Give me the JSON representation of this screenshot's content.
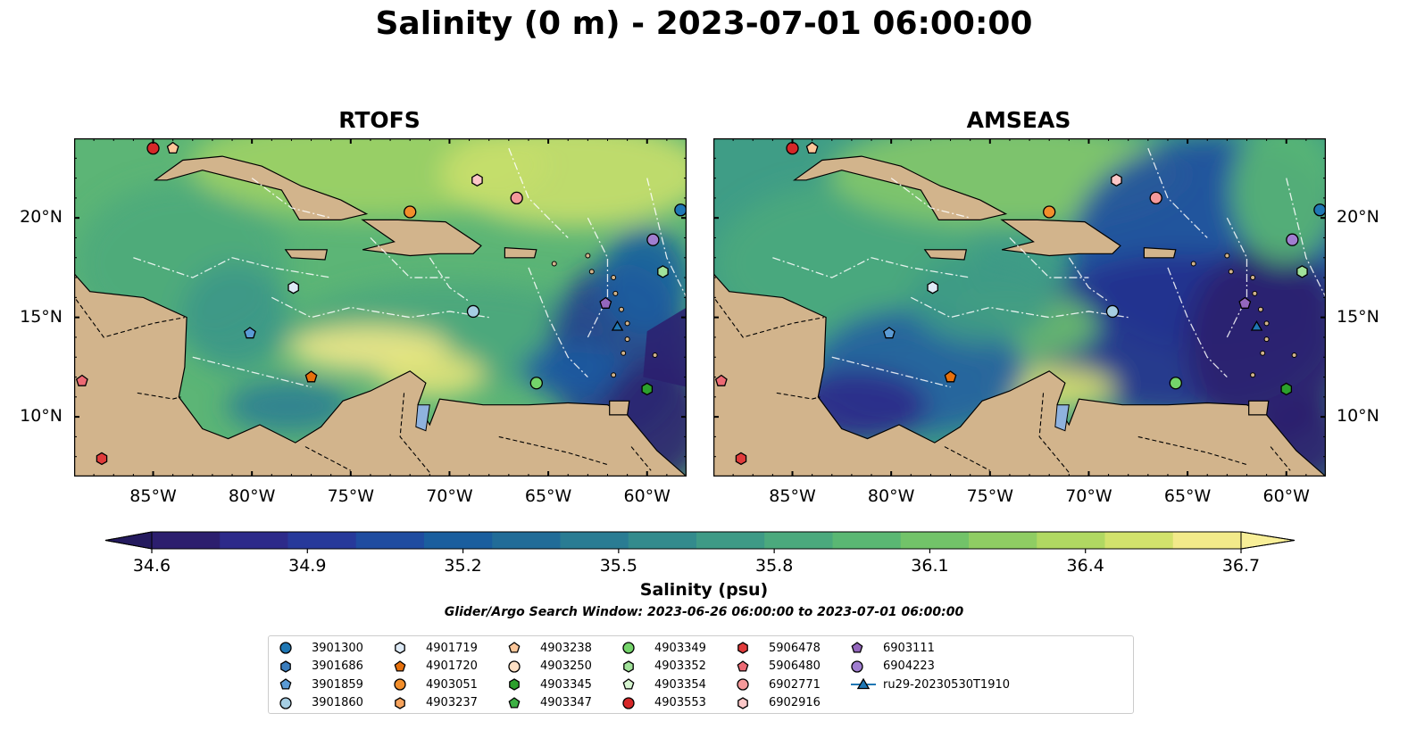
{
  "title": "Salinity (0 m) - 2023-07-01 06:00:00",
  "panels": [
    {
      "title": "RTOFS"
    },
    {
      "title": "AMSEAS"
    }
  ],
  "axes": {
    "lon_ticks": [
      "85°W",
      "80°W",
      "75°W",
      "70°W",
      "65°W",
      "60°W"
    ],
    "lat_ticks": [
      "20°N",
      "15°N",
      "10°N"
    ]
  },
  "colorbar": {
    "label": "Salinity (psu)",
    "min": 34.6,
    "max": 36.7,
    "ticks": [
      "34.6",
      "34.9",
      "35.2",
      "35.5",
      "35.8",
      "36.1",
      "36.4",
      "36.7"
    ],
    "colors": [
      "#2c1e6e",
      "#2d2a8a",
      "#27399a",
      "#1f4ca0",
      "#1a5e9e",
      "#216c98",
      "#2a7c93",
      "#338b8d",
      "#3e9a86",
      "#4ba97d",
      "#5ab773",
      "#72c369",
      "#8fcd63",
      "#b0d862",
      "#d2e26c",
      "#f2ea8a"
    ]
  },
  "search_window": "Glider/Argo Search Window: 2023-06-26 06:00:00 to 2023-07-01 06:00:00",
  "legend": [
    {
      "id": "3901300",
      "marker": "circle",
      "color": "#1f77b4"
    },
    {
      "id": "3901686",
      "marker": "hexagon",
      "color": "#3a7dbd"
    },
    {
      "id": "3901859",
      "marker": "pentagon",
      "color": "#5b9bd5"
    },
    {
      "id": "3901860",
      "marker": "circle",
      "color": "#a6cee3"
    },
    {
      "id": "4901719",
      "marker": "hexagon",
      "color": "#deebf7"
    },
    {
      "id": "4901720",
      "marker": "pentagon",
      "color": "#e6700c"
    },
    {
      "id": "4903051",
      "marker": "circle",
      "color": "#f28e2b"
    },
    {
      "id": "4903237",
      "marker": "hexagon",
      "color": "#f7a35c"
    },
    {
      "id": "4903238",
      "marker": "pentagon",
      "color": "#fdc79a"
    },
    {
      "id": "4903250",
      "marker": "circle",
      "color": "#fde0c5"
    },
    {
      "id": "4903345",
      "marker": "hexagon",
      "color": "#2ca02c"
    },
    {
      "id": "4903347",
      "marker": "pentagon",
      "color": "#3cb043"
    },
    {
      "id": "4903349",
      "marker": "circle",
      "color": "#74d46a"
    },
    {
      "id": "4903352",
      "marker": "hexagon",
      "color": "#a1e29a"
    },
    {
      "id": "4903354",
      "marker": "pentagon",
      "color": "#d6f5d0"
    },
    {
      "id": "4903553",
      "marker": "circle",
      "color": "#d62728"
    },
    {
      "id": "5906478",
      "marker": "hexagon",
      "color": "#e03b3b"
    },
    {
      "id": "5906480",
      "marker": "pentagon",
      "color": "#ec6a74"
    },
    {
      "id": "6902771",
      "marker": "circle",
      "color": "#f4999a"
    },
    {
      "id": "6902916",
      "marker": "hexagon",
      "color": "#fcc7c7"
    },
    {
      "id": "6903111",
      "marker": "pentagon",
      "color": "#9467bd"
    },
    {
      "id": "6904223",
      "marker": "circle",
      "color": "#a07ed0"
    },
    {
      "id": "ru29-20230530T1910",
      "marker": "triangle-line",
      "color": "#1f77b4"
    }
  ],
  "map_extent": {
    "lon": [
      -89,
      -58
    ],
    "lat": [
      7,
      24
    ]
  },
  "platforms": [
    {
      "id": "3901300",
      "lon": -58.3,
      "lat": 20.4
    },
    {
      "id": "4903051",
      "lon": -72.0,
      "lat": 20.3
    },
    {
      "id": "6902916",
      "lon": -68.6,
      "lat": 21.9
    },
    {
      "id": "6902771",
      "lon": -66.6,
      "lat": 21.0
    },
    {
      "id": "6904223",
      "lon": -59.7,
      "lat": 18.9
    },
    {
      "id": "4903352",
      "lon": -59.2,
      "lat": 17.3
    },
    {
      "id": "4901719",
      "lon": -77.9,
      "lat": 16.5
    },
    {
      "id": "3901860",
      "lon": -68.8,
      "lat": 15.3
    },
    {
      "id": "6903111",
      "lon": -62.1,
      "lat": 15.7
    },
    {
      "id": "ru29-20230530T1910",
      "lon": -61.5,
      "lat": 14.5
    },
    {
      "id": "3901859",
      "lon": -80.1,
      "lat": 14.2
    },
    {
      "id": "4901720",
      "lon": -77.0,
      "lat": 12.0
    },
    {
      "id": "4903349",
      "lon": -65.6,
      "lat": 11.7
    },
    {
      "id": "4903345",
      "lon": -60.0,
      "lat": 11.4
    },
    {
      "id": "5906480",
      "lon": -88.6,
      "lat": 11.8
    },
    {
      "id": "5906478",
      "lon": -87.6,
      "lat": 7.9
    },
    {
      "id": "4903553",
      "lon": -85.0,
      "lat": 23.5
    },
    {
      "id": "4903238",
      "lon": -84.0,
      "lat": 23.5
    }
  ]
}
